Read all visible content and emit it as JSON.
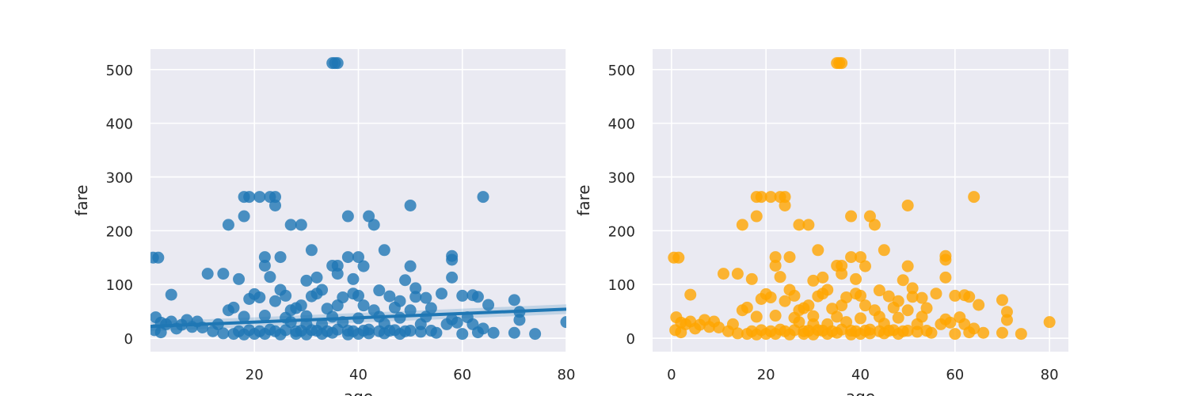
{
  "chart_data": [
    {
      "type": "scatter",
      "subtype": "regplot",
      "xlabel": "age",
      "ylabel": "fare",
      "xlim": [
        0,
        80
      ],
      "ylim": [
        -25,
        538
      ],
      "xticks": [
        20,
        40,
        60,
        80
      ],
      "yticks": [
        0,
        100,
        200,
        300,
        400,
        500
      ],
      "grid": true,
      "background": "#EAEAF2",
      "point_color": "#1F77B4",
      "regression_line": {
        "x": [
          0,
          80
        ],
        "y": [
          22,
          54
        ]
      },
      "series": [
        {
          "points": [
            [
              0.5,
              150
            ],
            [
              1.5,
              150
            ],
            [
              4,
              81
            ],
            [
              11,
              120
            ],
            [
              14,
              120
            ],
            [
              15,
              211
            ],
            [
              18,
              263
            ],
            [
              19,
              263
            ],
            [
              21,
              263
            ],
            [
              23,
              263
            ],
            [
              24,
              263
            ],
            [
              24,
              247
            ],
            [
              18,
              227
            ],
            [
              27,
              211
            ],
            [
              29,
              211
            ],
            [
              38,
              227
            ],
            [
              42,
              227
            ],
            [
              43,
              211
            ],
            [
              50,
              247
            ],
            [
              64,
              263
            ],
            [
              35,
              512
            ],
            [
              35.5,
              512
            ],
            [
              36,
              512
            ],
            [
              22,
              151
            ],
            [
              22,
              135
            ],
            [
              25,
              151
            ],
            [
              31,
              164
            ],
            [
              35,
              135
            ],
            [
              36,
              135
            ],
            [
              38,
              151
            ],
            [
              40,
              151
            ],
            [
              41,
              134
            ],
            [
              45,
              164
            ],
            [
              50,
              134
            ],
            [
              58,
              153
            ],
            [
              58,
              146
            ],
            [
              58,
              113
            ],
            [
              17,
              110
            ],
            [
              23,
              114
            ],
            [
              30,
              107
            ],
            [
              32,
              113
            ],
            [
              36,
              120
            ],
            [
              39,
              110
            ],
            [
              49,
              108
            ],
            [
              51,
              93
            ],
            [
              60,
              79
            ],
            [
              62,
              80
            ],
            [
              63,
              77
            ],
            [
              65,
              62
            ],
            [
              70,
              71
            ],
            [
              71,
              49
            ],
            [
              71,
              34
            ],
            [
              74,
              8
            ],
            [
              80,
              30
            ],
            [
              70,
              10
            ],
            [
              60,
              8
            ],
            [
              55,
              10
            ],
            [
              52,
              12
            ],
            [
              48,
              8
            ],
            [
              45,
              9
            ],
            [
              42,
              9
            ],
            [
              40,
              8
            ],
            [
              38,
              7
            ],
            [
              35,
              10
            ],
            [
              33,
              8
            ],
            [
              30,
              7
            ],
            [
              28,
              8
            ],
            [
              25,
              7
            ],
            [
              22,
              8
            ],
            [
              20,
              8
            ],
            [
              18,
              7
            ],
            [
              16,
              8
            ],
            [
              14,
              9
            ],
            [
              12,
              13
            ],
            [
              10,
              20
            ],
            [
              8,
              21
            ],
            [
              6,
              25
            ],
            [
              4,
              31
            ],
            [
              3,
              26
            ],
            [
              2,
              29
            ],
            [
              1,
              39
            ],
            [
              0.8,
              15
            ],
            [
              2,
              11
            ],
            [
              5,
              18
            ],
            [
              7,
              34
            ],
            [
              9,
              31
            ],
            [
              13,
              26
            ],
            [
              15,
              52
            ],
            [
              16,
              57
            ],
            [
              19,
              73
            ],
            [
              20,
              82
            ],
            [
              21,
              76
            ],
            [
              24,
              69
            ],
            [
              26,
              79
            ],
            [
              27,
              52
            ],
            [
              28,
              56
            ],
            [
              29,
              61
            ],
            [
              31,
              78
            ],
            [
              32,
              83
            ],
            [
              33,
              90
            ],
            [
              34,
              55
            ],
            [
              36,
              61
            ],
            [
              37,
              76
            ],
            [
              39,
              83
            ],
            [
              40,
              79
            ],
            [
              41,
              61
            ],
            [
              43,
              52
            ],
            [
              44,
              89
            ],
            [
              46,
              78
            ],
            [
              47,
              57
            ],
            [
              48,
              69
            ],
            [
              50,
              52
            ],
            [
              51,
              77
            ],
            [
              53,
              75
            ],
            [
              54,
              56
            ],
            [
              56,
              83
            ],
            [
              57,
              26
            ],
            [
              59,
              29
            ],
            [
              61,
              39
            ],
            [
              62,
              26
            ],
            [
              64,
              18
            ],
            [
              63,
              11
            ],
            [
              66,
              10
            ],
            [
              25,
              90
            ],
            [
              27,
              30
            ],
            [
              30,
              26
            ],
            [
              33,
              26
            ],
            [
              37,
              30
            ],
            [
              45,
              27
            ],
            [
              52,
              26
            ],
            [
              24,
              13
            ],
            [
              26,
              15
            ],
            [
              28,
              13
            ],
            [
              31,
              15
            ],
            [
              34,
              13
            ],
            [
              36,
              16
            ],
            [
              39,
              13
            ],
            [
              42,
              16
            ],
            [
              44,
              13
            ],
            [
              47,
              15
            ],
            [
              49,
              13
            ],
            [
              54,
              14
            ],
            [
              17,
              13
            ],
            [
              19,
              15
            ],
            [
              21,
              13
            ],
            [
              23,
              16
            ],
            [
              29,
              14
            ],
            [
              32,
              14
            ],
            [
              38,
              14
            ],
            [
              41,
              14
            ],
            [
              46,
              14
            ],
            [
              50,
              14
            ],
            [
              18,
              40
            ],
            [
              22,
              42
            ],
            [
              26,
              38
            ],
            [
              30,
              41
            ],
            [
              35,
              40
            ],
            [
              40,
              37
            ],
            [
              44,
              40
            ],
            [
              48,
              38
            ],
            [
              53,
              40
            ],
            [
              58,
              35
            ]
          ]
        }
      ]
    },
    {
      "type": "scatter",
      "xlabel": "age",
      "ylabel": "fare",
      "xlim": [
        -4,
        84
      ],
      "ylim": [
        -25,
        538
      ],
      "xticks": [
        0,
        20,
        40,
        60,
        80
      ],
      "yticks": [
        0,
        100,
        200,
        300,
        400,
        500
      ],
      "grid": true,
      "background": "#EAEAF2",
      "point_color": "#FFA500",
      "series": [
        {
          "points": "same_as_left"
        }
      ]
    }
  ]
}
